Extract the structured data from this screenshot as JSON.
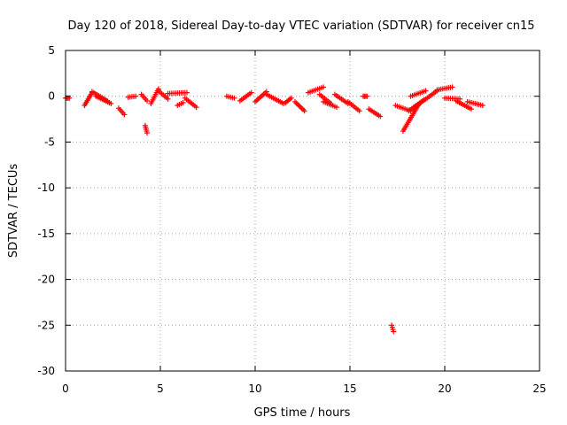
{
  "chart_data": {
    "type": "scatter",
    "title": "Day 120 of 2018, Sidereal Day-to-day VTEC variation (SDTVAR) for receiver cn15",
    "xlabel": "GPS time / hours",
    "ylabel": "SDTVAR / TECUs",
    "xlim": [
      0,
      25
    ],
    "ylim": [
      -30,
      5
    ],
    "x_ticks": [
      "0",
      "5",
      "10",
      "15",
      "20",
      "25"
    ],
    "y_ticks": [
      "5",
      "0",
      "-5",
      "-10",
      "-15",
      "-20",
      "-25",
      "-30"
    ],
    "grid": true,
    "marker": "plus",
    "series_color": "#ff0000",
    "series": [
      {
        "name": "SDTVAR",
        "segments": [
          {
            "x0": 0.0,
            "x1": 0.2,
            "y0": -0.2,
            "y1": -0.2
          },
          {
            "x0": 1.0,
            "x1": 1.4,
            "y0": -1.0,
            "y1": 0.4
          },
          {
            "x0": 1.4,
            "x1": 2.2,
            "y0": 0.5,
            "y1": -0.5
          },
          {
            "x0": 1.6,
            "x1": 2.4,
            "y0": 0.0,
            "y1": -0.8
          },
          {
            "x0": 2.8,
            "x1": 3.1,
            "y0": -1.3,
            "y1": -2.0
          },
          {
            "x0": 3.3,
            "x1": 3.7,
            "y0": -0.1,
            "y1": 0.0
          },
          {
            "x0": 4.0,
            "x1": 4.3,
            "y0": 0.2,
            "y1": -0.5
          },
          {
            "x0": 4.2,
            "x1": 4.3,
            "y0": -3.2,
            "y1": -4.0
          },
          {
            "x0": 4.5,
            "x1": 4.9,
            "y0": -0.8,
            "y1": 0.8
          },
          {
            "x0": 4.9,
            "x1": 5.4,
            "y0": 0.6,
            "y1": -0.3
          },
          {
            "x0": 5.4,
            "x1": 6.4,
            "y0": 0.3,
            "y1": 0.4
          },
          {
            "x0": 5.9,
            "x1": 6.2,
            "y0": -1.0,
            "y1": -0.7
          },
          {
            "x0": 6.3,
            "x1": 6.9,
            "y0": -0.2,
            "y1": -1.2
          },
          {
            "x0": 8.5,
            "x1": 8.9,
            "y0": 0.0,
            "y1": -0.2
          },
          {
            "x0": 9.2,
            "x1": 9.8,
            "y0": -0.5,
            "y1": 0.4
          },
          {
            "x0": 10.0,
            "x1": 10.6,
            "y0": -0.6,
            "y1": 0.5
          },
          {
            "x0": 10.6,
            "x1": 11.5,
            "y0": 0.2,
            "y1": -0.8
          },
          {
            "x0": 11.6,
            "x1": 11.9,
            "y0": -0.7,
            "y1": -0.2
          },
          {
            "x0": 12.1,
            "x1": 12.6,
            "y0": -0.6,
            "y1": -1.6
          },
          {
            "x0": 12.8,
            "x1": 13.6,
            "y0": 0.4,
            "y1": 1.0
          },
          {
            "x0": 13.4,
            "x1": 14.0,
            "y0": 0.2,
            "y1": -0.8
          },
          {
            "x0": 13.6,
            "x1": 14.3,
            "y0": -0.6,
            "y1": -1.2
          },
          {
            "x0": 14.2,
            "x1": 14.9,
            "y0": 0.2,
            "y1": -0.8
          },
          {
            "x0": 14.9,
            "x1": 15.5,
            "y0": -0.6,
            "y1": -1.6
          },
          {
            "x0": 15.7,
            "x1": 15.9,
            "y0": 0.0,
            "y1": 0.0
          },
          {
            "x0": 16.0,
            "x1": 16.6,
            "y0": -1.4,
            "y1": -2.2
          },
          {
            "x0": 17.2,
            "x1": 17.3,
            "y0": -25.0,
            "y1": -25.7
          },
          {
            "x0": 17.4,
            "x1": 18.2,
            "y0": -1.0,
            "y1": -1.6
          },
          {
            "x0": 17.8,
            "x1": 18.6,
            "y0": -3.8,
            "y1": -1.0
          },
          {
            "x0": 18.1,
            "x1": 18.9,
            "y0": -1.6,
            "y1": -0.4
          },
          {
            "x0": 18.4,
            "x1": 19.6,
            "y0": -1.2,
            "y1": 0.6
          },
          {
            "x0": 18.2,
            "x1": 19.0,
            "y0": 0.0,
            "y1": 0.6
          },
          {
            "x0": 19.6,
            "x1": 20.4,
            "y0": 0.7,
            "y1": 1.0
          },
          {
            "x0": 20.0,
            "x1": 20.8,
            "y0": -0.2,
            "y1": -0.3
          },
          {
            "x0": 20.6,
            "x1": 21.4,
            "y0": -0.5,
            "y1": -1.4
          },
          {
            "x0": 21.2,
            "x1": 22.0,
            "y0": -0.6,
            "y1": -1.0
          }
        ]
      }
    ]
  }
}
